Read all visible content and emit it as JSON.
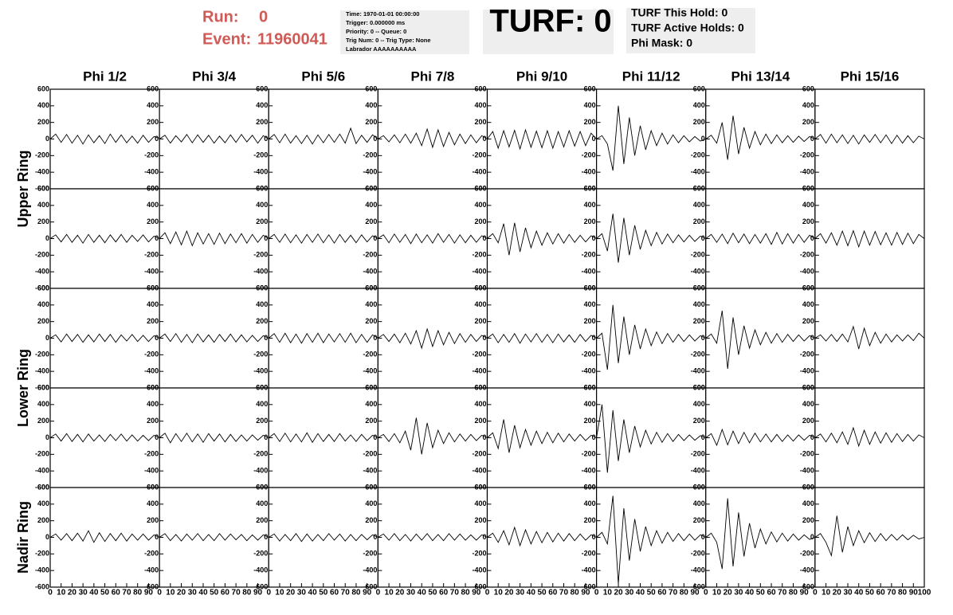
{
  "header": {
    "run_label": "Run:",
    "run": "0",
    "event_label": "Event:",
    "event": "11960041",
    "info": [
      "Time: 1970-01-01 00:00:00",
      "Trigger: 0.000000 ms",
      "Priority: 0 -- Queue: 0",
      "Trig Num: 0 -- Trig Type: None",
      "Labrador AAAAAAAAAA"
    ],
    "turf": "TURF: 0",
    "turf_info": [
      "TURF This Hold: 0",
      "TURF Active Holds: 0",
      "Phi Mask: 0"
    ]
  },
  "chart_data": {
    "type": "waveform-grid",
    "columns": [
      "Phi 1/2",
      "Phi 3/4",
      "Phi 5/6",
      "Phi 7/8",
      "Phi 9/10",
      "Phi 11/12",
      "Phi 13/14",
      "Phi 15/16"
    ],
    "ring_labels": [
      "Upper Ring",
      "Lower Ring",
      "Nadir Ring"
    ],
    "x": [
      0,
      5,
      10,
      15,
      20,
      25,
      30,
      35,
      40,
      45,
      50,
      55,
      60,
      65,
      70,
      75,
      80,
      85,
      90,
      95,
      100
    ],
    "xlim": [
      0,
      100
    ],
    "xticks": [
      0,
      10,
      20,
      30,
      40,
      50,
      60,
      70,
      80,
      90,
      100
    ],
    "ylim": [
      -600,
      600
    ],
    "yticks": [
      -600,
      -400,
      -200,
      0,
      200,
      400,
      600
    ],
    "color": "#000000",
    "panels": [
      [
        [
          0,
          60,
          -40,
          55,
          -50,
          45,
          -60,
          50,
          -45,
          40,
          -55,
          60,
          -40,
          50,
          -45,
          35,
          -50,
          45,
          -40,
          30,
          10
        ],
        [
          0,
          45,
          -50,
          40,
          -35,
          55,
          -45,
          50,
          -40,
          45,
          -50,
          35,
          -45,
          50,
          -40,
          55,
          -35,
          45,
          -50,
          40,
          0
        ],
        [
          0,
          55,
          -45,
          60,
          -50,
          40,
          -55,
          45,
          -60,
          50,
          -45,
          55,
          -40,
          60,
          -50,
          130,
          -55,
          45,
          -40,
          50,
          0
        ],
        [
          0,
          40,
          -35,
          50,
          -45,
          60,
          -50,
          70,
          -80,
          120,
          -100,
          110,
          -90,
          80,
          -70,
          60,
          -55,
          50,
          -45,
          40,
          0
        ],
        [
          0,
          90,
          -110,
          100,
          -95,
          105,
          -120,
          110,
          -100,
          95,
          -105,
          100,
          -110,
          90,
          -95,
          100,
          -85,
          90,
          -80,
          70,
          0
        ],
        [
          0,
          40,
          -60,
          -380,
          400,
          -300,
          260,
          -200,
          160,
          -130,
          100,
          -80,
          70,
          -60,
          50,
          -45,
          40,
          -35,
          30,
          -25,
          0
        ],
        [
          0,
          45,
          -50,
          200,
          -250,
          280,
          -180,
          140,
          -110,
          90,
          -70,
          60,
          -55,
          50,
          -45,
          40,
          -40,
          35,
          -30,
          30,
          0
        ],
        [
          0,
          55,
          -50,
          60,
          -45,
          50,
          -55,
          45,
          -60,
          50,
          -40,
          55,
          -45,
          50,
          -55,
          45,
          -50,
          40,
          -45,
          35,
          0
        ]
      ],
      [
        [
          0,
          45,
          -40,
          50,
          -45,
          40,
          -55,
          50,
          -45,
          40,
          -50,
          45,
          -40,
          50,
          -45,
          40,
          -35,
          45,
          -40,
          30,
          0
        ],
        [
          0,
          70,
          -60,
          80,
          -75,
          90,
          -85,
          70,
          -65,
          60,
          -70,
          65,
          -60,
          55,
          -50,
          60,
          -55,
          50,
          -45,
          40,
          0
        ],
        [
          0,
          50,
          -45,
          55,
          -50,
          45,
          -55,
          50,
          -45,
          55,
          -50,
          45,
          -55,
          50,
          -45,
          40,
          -50,
          45,
          -40,
          35,
          0
        ],
        [
          0,
          45,
          -50,
          55,
          -45,
          50,
          -60,
          55,
          -50,
          45,
          -55,
          60,
          -45,
          50,
          -55,
          45,
          -50,
          40,
          -45,
          35,
          0
        ],
        [
          0,
          60,
          -50,
          180,
          -200,
          190,
          -160,
          130,
          -110,
          90,
          -80,
          70,
          -65,
          60,
          -55,
          50,
          -45,
          40,
          -40,
          35,
          0
        ],
        [
          0,
          60,
          -150,
          300,
          -290,
          250,
          -200,
          160,
          -130,
          100,
          -85,
          75,
          -65,
          55,
          -50,
          45,
          -40,
          40,
          -35,
          30,
          0
        ],
        [
          0,
          50,
          -45,
          55,
          -60,
          65,
          -50,
          55,
          -60,
          50,
          -55,
          60,
          -70,
          75,
          -65,
          60,
          -55,
          50,
          -45,
          40,
          0
        ],
        [
          0,
          60,
          -55,
          70,
          -80,
          90,
          -85,
          95,
          -100,
          90,
          -80,
          85,
          -75,
          70,
          -80,
          75,
          -70,
          65,
          -60,
          50,
          0
        ]
      ],
      [
        [
          0,
          40,
          -45,
          50,
          -40,
          45,
          -50,
          40,
          -45,
          50,
          -40,
          45,
          -50,
          40,
          -35,
          45,
          -40,
          35,
          -40,
          30,
          0
        ],
        [
          0,
          50,
          -40,
          55,
          -50,
          45,
          -55,
          50,
          -45,
          40,
          -50,
          45,
          -40,
          50,
          -45,
          40,
          -45,
          35,
          -40,
          30,
          0
        ],
        [
          0,
          55,
          -50,
          60,
          -55,
          50,
          -60,
          55,
          -50,
          60,
          -55,
          50,
          -45,
          55,
          -50,
          60,
          -55,
          45,
          -50,
          40,
          0
        ],
        [
          0,
          45,
          -40,
          50,
          -55,
          60,
          -70,
          90,
          -120,
          110,
          -100,
          90,
          -80,
          70,
          -65,
          55,
          -50,
          45,
          -40,
          35,
          0
        ],
        [
          0,
          50,
          -55,
          45,
          -50,
          55,
          -60,
          50,
          -45,
          55,
          -50,
          45,
          -55,
          50,
          -45,
          40,
          -50,
          45,
          -40,
          35,
          0
        ],
        [
          0,
          60,
          -380,
          400,
          -300,
          260,
          -200,
          160,
          -130,
          110,
          -90,
          75,
          -65,
          55,
          -50,
          45,
          -40,
          40,
          -35,
          30,
          0
        ],
        [
          0,
          50,
          -60,
          330,
          -370,
          250,
          -200,
          150,
          -120,
          100,
          -80,
          70,
          -60,
          55,
          -50,
          45,
          -40,
          40,
          -35,
          30,
          0
        ],
        [
          0,
          40,
          -35,
          45,
          -40,
          50,
          -45,
          140,
          -130,
          120,
          -90,
          70,
          -60,
          50,
          -45,
          40,
          -35,
          40,
          -30,
          60,
          0
        ]
      ],
      [
        [
          0,
          45,
          -40,
          50,
          -45,
          40,
          -50,
          45,
          -40,
          35,
          -45,
          40,
          -35,
          45,
          -40,
          35,
          -40,
          30,
          -35,
          30,
          0
        ],
        [
          0,
          55,
          -60,
          50,
          -45,
          55,
          -50,
          45,
          -55,
          50,
          -40,
          45,
          -50,
          40,
          -45,
          35,
          -40,
          35,
          -30,
          30,
          0
        ],
        [
          0,
          50,
          -45,
          55,
          -50,
          45,
          -50,
          60,
          -55,
          50,
          -45,
          40,
          -45,
          50,
          -40,
          35,
          -45,
          40,
          -35,
          30,
          0
        ],
        [
          0,
          40,
          -45,
          50,
          -60,
          80,
          -150,
          240,
          -200,
          180,
          -120,
          90,
          -70,
          60,
          -50,
          45,
          -40,
          40,
          -35,
          30,
          0
        ],
        [
          0,
          60,
          -130,
          220,
          -180,
          150,
          -120,
          100,
          -90,
          80,
          -70,
          65,
          -60,
          55,
          -50,
          45,
          -40,
          40,
          -35,
          30,
          0
        ],
        [
          0,
          400,
          -420,
          330,
          -280,
          220,
          -180,
          140,
          -110,
          90,
          -75,
          65,
          -55,
          50,
          -45,
          40,
          -35,
          35,
          -30,
          25,
          0
        ],
        [
          0,
          50,
          -90,
          100,
          -85,
          80,
          -70,
          65,
          -60,
          55,
          -50,
          45,
          -50,
          40,
          -45,
          35,
          -40,
          35,
          -30,
          30,
          0
        ],
        [
          0,
          45,
          -50,
          55,
          -60,
          70,
          -80,
          120,
          -100,
          90,
          -80,
          70,
          -65,
          60,
          -55,
          50,
          -45,
          40,
          -40,
          35,
          0
        ]
      ],
      [
        [
          0,
          40,
          -35,
          45,
          -40,
          50,
          -45,
          80,
          -60,
          55,
          -50,
          45,
          -40,
          50,
          -45,
          40,
          -35,
          40,
          -35,
          30,
          0
        ],
        [
          0,
          45,
          -40,
          35,
          -45,
          40,
          -35,
          45,
          -40,
          35,
          -40,
          45,
          -35,
          40,
          -30,
          35,
          -40,
          30,
          -35,
          30,
          0
        ],
        [
          0,
          40,
          -45,
          35,
          -40,
          45,
          -50,
          40,
          -45,
          35,
          -40,
          45,
          -35,
          40,
          -45,
          35,
          -40,
          35,
          -30,
          30,
          0
        ],
        [
          0,
          40,
          -35,
          45,
          -40,
          35,
          -45,
          40,
          -35,
          45,
          -40,
          35,
          -40,
          45,
          -35,
          40,
          -35,
          30,
          -35,
          30,
          0
        ],
        [
          0,
          50,
          -60,
          80,
          -90,
          120,
          -100,
          90,
          -80,
          70,
          -65,
          60,
          -55,
          50,
          -45,
          45,
          -40,
          40,
          -35,
          30,
          0
        ],
        [
          0,
          60,
          -80,
          500,
          -560,
          350,
          -280,
          220,
          -170,
          130,
          -100,
          80,
          -70,
          60,
          -50,
          45,
          -40,
          40,
          -35,
          30,
          0
        ],
        [
          0,
          50,
          -60,
          -380,
          470,
          -350,
          300,
          -230,
          170,
          -130,
          100,
          -80,
          65,
          -55,
          50,
          -45,
          40,
          -35,
          30,
          -25,
          0
        ],
        [
          0,
          45,
          -60,
          -220,
          260,
          -180,
          130,
          -100,
          80,
          -65,
          55,
          -50,
          45,
          -40,
          35,
          -35,
          30,
          -30,
          25,
          -20,
          0
        ]
      ]
    ]
  }
}
